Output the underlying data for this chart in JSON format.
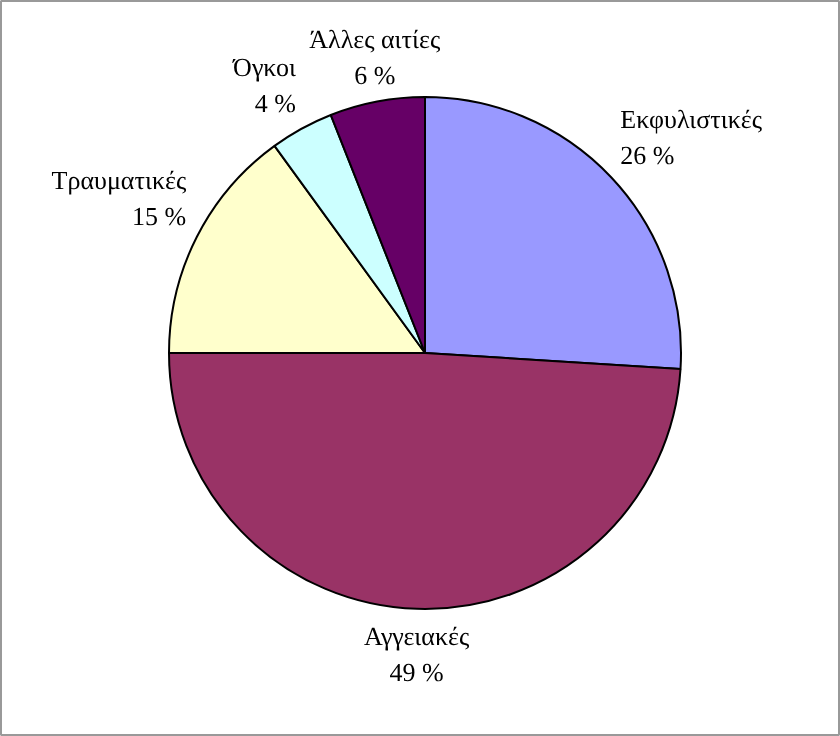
{
  "chart_data": {
    "type": "pie",
    "categories": [
      "Εκφυλιστικές",
      "Αγγειακές",
      "Τραυματικές",
      "Όγκοι",
      "Άλλες αιτίες"
    ],
    "values": [
      26,
      49,
      15,
      4,
      6
    ],
    "colors": [
      "#9999ff",
      "#993366",
      "#ffffcc",
      "#ccffff",
      "#660066"
    ],
    "value_labels": [
      "26 %",
      "49 %",
      "15 %",
      "4 %",
      "6 %"
    ]
  }
}
